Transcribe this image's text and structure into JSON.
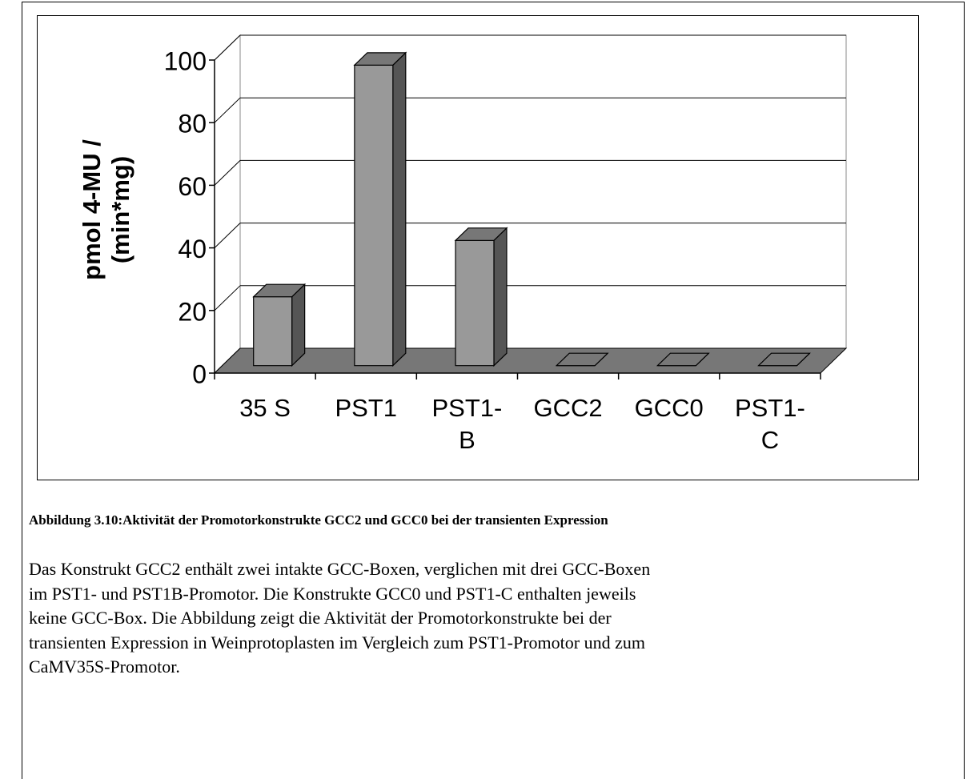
{
  "chart_data": {
    "type": "bar3d",
    "y_label": "pmol 4-MU / (min*mg)",
    "categories": [
      "35 S",
      "PST1",
      "PST1-B",
      "GCC2",
      "GCC0",
      "PST1-C"
    ],
    "values": [
      22,
      96,
      40,
      0,
      0,
      0
    ],
    "color": "#999999",
    "ylim": [
      0,
      100
    ],
    "yticks": [
      0,
      20,
      40,
      60,
      80,
      100
    ],
    "grid": true
  },
  "caption": "Abbildung 3.10:Aktivität der Promotorkonstrukte GCC2 und GCC0 bei der transienten Expression",
  "paragraph": "Das Konstrukt GCC2 enthält zwei intakte GCC-Boxen, verglichen mit drei GCC-Boxen im PST1- und PST1B-Promotor. Die Konstrukte GCC0 und PST1-C enthalten jeweils keine GCC-Box. Die Abbildung zeigt die Aktivität der Promotorkonstrukte bei der transienten Expression in Weinprotoplasten im Vergleich zum PST1-Promotor und zum CaMV35S-Promotor."
}
